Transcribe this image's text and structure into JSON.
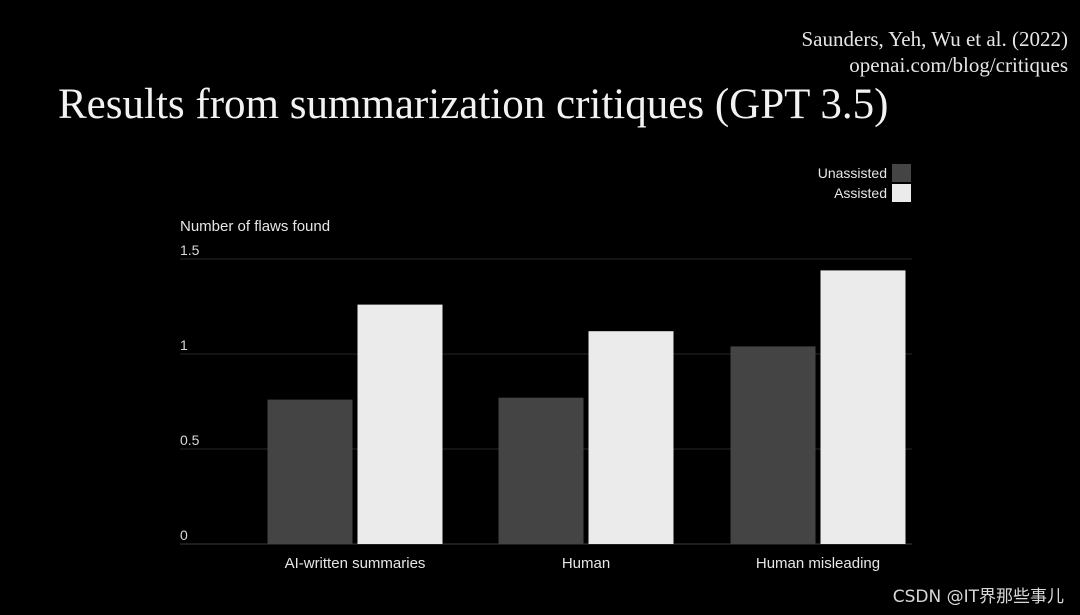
{
  "citation": {
    "authors": "Saunders, Yeh, Wu et al. (2022)",
    "url": "openai.com/blog/critiques"
  },
  "slide_title": "Results from summarization critiques (GPT 3.5)",
  "watermark": "CSDN @IT界那些事儿",
  "chart_data": {
    "type": "bar",
    "ylabel": "Number of flaws found",
    "xlabel": "",
    "ylim": [
      0,
      1.5
    ],
    "yticks": [
      "0",
      "0.5",
      "1",
      "1.5"
    ],
    "categories": [
      "AI-written summaries",
      "Human",
      "Human misleading"
    ],
    "series": [
      {
        "name": "Unassisted",
        "color": "#444444",
        "values": [
          0.76,
          0.77,
          1.04
        ]
      },
      {
        "name": "Assisted",
        "color": "#ebebeb",
        "values": [
          1.26,
          1.12,
          1.44
        ]
      }
    ],
    "legend_position": "top-right",
    "grid": true
  }
}
